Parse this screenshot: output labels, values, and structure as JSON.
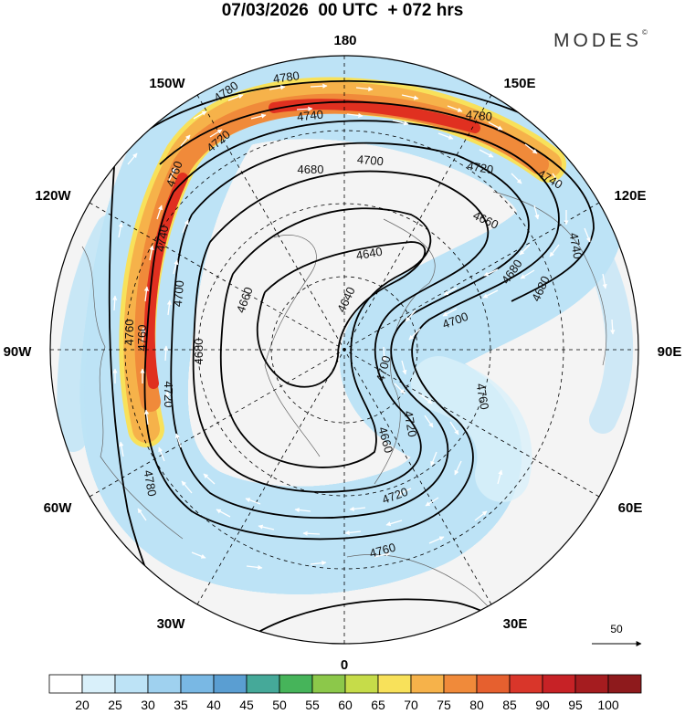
{
  "header": {
    "title": "07/03/2026  00 UTC  + 072 hrs",
    "brand": "MODES"
  },
  "longitude_labels": {
    "lon_180": "180",
    "lon_150E": "150E",
    "lon_120E": "120E",
    "lon_90E": "90E",
    "lon_60E": "60E",
    "lon_30E": "30E",
    "lon_0": "0",
    "lon_30W": "30W",
    "lon_60W": "60W",
    "lon_90W": "90W",
    "lon_120W": "120W",
    "lon_150W": "150W"
  },
  "contour_labels": [
    "4780",
    "4780",
    "4740",
    "4720",
    "4700",
    "4680",
    "4760",
    "4740",
    "4760",
    "4700",
    "4680",
    "4660",
    "4640",
    "4640",
    "4700",
    "4680",
    "4660",
    "4720",
    "4740",
    "4780",
    "4700",
    "4720",
    "4760",
    "4660",
    "4720",
    "4760",
    "4780",
    "4760",
    "4740",
    "4720",
    "4680"
  ],
  "colors": {
    "ocean": "#f4f4f4",
    "jet_core": "#e03020",
    "contour": "#000000",
    "wind_arrow": "#ffffff"
  },
  "reference_vector": {
    "label": "50"
  },
  "colorbar": {
    "levels": [
      "20",
      "25",
      "30",
      "35",
      "40",
      "45",
      "50",
      "55",
      "60",
      "65",
      "70",
      "75",
      "80",
      "85",
      "90",
      "95",
      "100"
    ],
    "colors": [
      "#ffffff",
      "#d9f0fa",
      "#bde3f6",
      "#9fd1ef",
      "#79b8e4",
      "#5a9ed2",
      "#45a999",
      "#46b45a",
      "#8cc84a",
      "#c6dc49",
      "#f8e15a",
      "#f6b24a",
      "#f08a3a",
      "#e6602f",
      "#d9362a",
      "#c72226",
      "#a51c1f",
      "#8e1a1c"
    ]
  }
}
